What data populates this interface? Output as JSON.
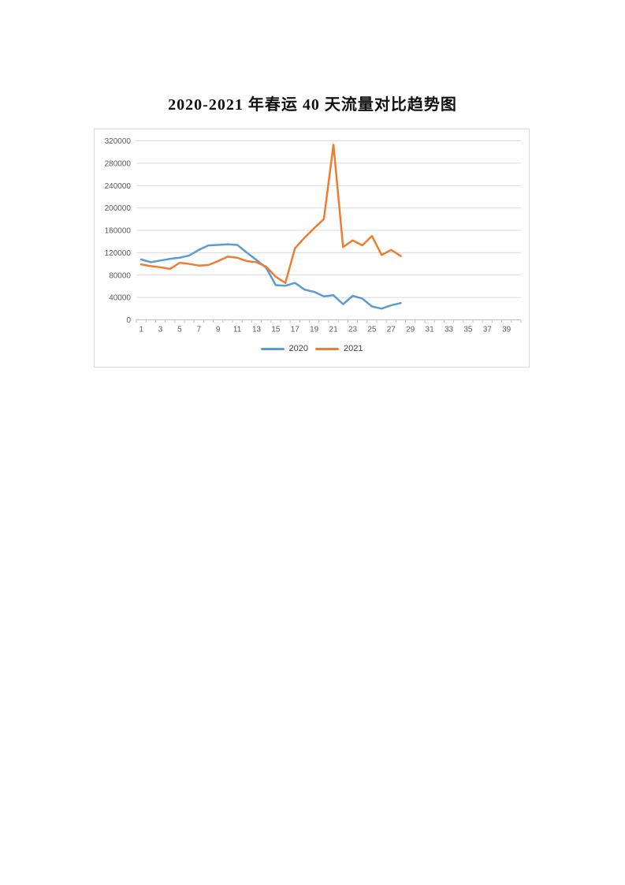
{
  "page": {
    "title": "2020-2021 年春运 40 天流量对比趋势图"
  },
  "chart_data": {
    "type": "line",
    "title": "2020-2021 年春运 40 天流量对比趋势图",
    "xlabel": "",
    "ylabel": "",
    "x_range": [
      1,
      40
    ],
    "ylim": [
      0,
      320000
    ],
    "y_ticks": [
      0,
      40000,
      80000,
      120000,
      160000,
      200000,
      240000,
      280000,
      320000
    ],
    "x_tick_labels": [
      1,
      3,
      5,
      7,
      9,
      11,
      13,
      15,
      17,
      19,
      21,
      23,
      25,
      27,
      29,
      31,
      33,
      35,
      37,
      39
    ],
    "grid": "horizontal",
    "legend_position": "bottom",
    "grid_color": "#d9d9d9",
    "axis_color": "#bfbfbf",
    "tick_label_color": "#595959",
    "x": [
      1,
      2,
      3,
      4,
      5,
      6,
      7,
      8,
      9,
      10,
      11,
      12,
      13,
      14,
      15,
      16,
      17,
      18,
      19,
      20,
      21,
      22,
      23,
      24,
      25,
      26,
      27,
      28
    ],
    "series": [
      {
        "name": "2020",
        "color": "#5B9BD5",
        "values": [
          108000,
          103000,
          106000,
          109000,
          111000,
          115000,
          125000,
          133000,
          134000,
          135000,
          134000,
          120000,
          107000,
          93000,
          62000,
          61000,
          66000,
          54000,
          50000,
          42000,
          44000,
          28000,
          43000,
          38000,
          24000,
          20000,
          26000,
          30000
        ]
      },
      {
        "name": "2021",
        "color": "#ED7D31",
        "values": [
          99000,
          96000,
          94000,
          91000,
          102000,
          100000,
          97000,
          98000,
          105000,
          113000,
          111000,
          105000,
          103000,
          95000,
          77000,
          66000,
          128000,
          147000,
          164000,
          180000,
          313000,
          130000,
          142000,
          133000,
          150000,
          116000,
          125000,
          114000
        ]
      }
    ]
  }
}
